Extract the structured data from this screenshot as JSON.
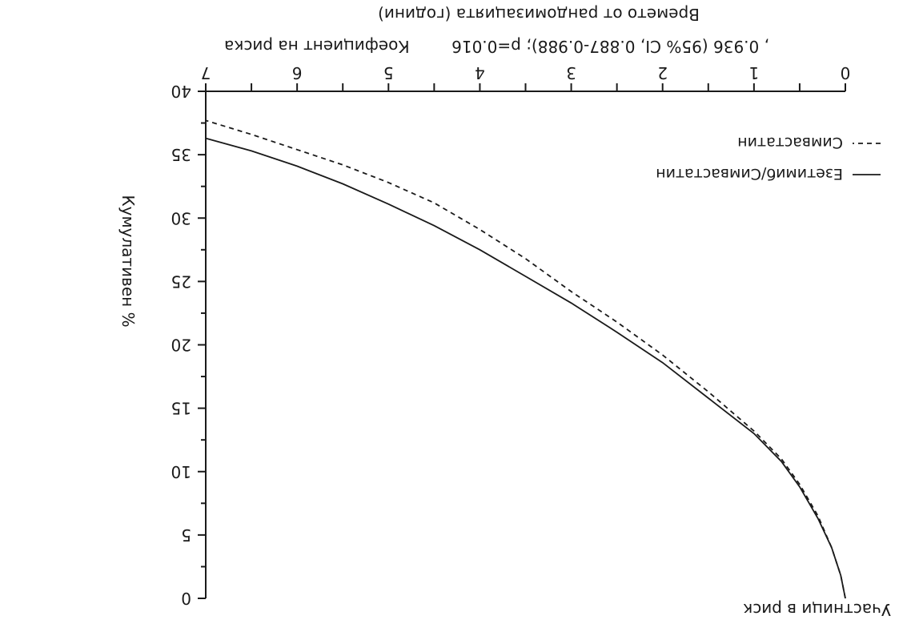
{
  "chart_data": {
    "type": "line",
    "title": "Участници в риск",
    "xlabel": "Времето от рандомизацията (години)",
    "ylabel": "Кумулативен %",
    "xlim": [
      0,
      7
    ],
    "ylim": [
      0,
      40
    ],
    "x_ticks": [
      "0",
      "1",
      "2",
      "3",
      "4",
      "5",
      "6",
      "7"
    ],
    "y_ticks": [
      "0",
      "5",
      "10",
      "15",
      "20",
      "25",
      "30",
      "35",
      "40"
    ],
    "grid": false,
    "legend_position": "top-right",
    "series": [
      {
        "name": "Симвастатин",
        "style": "dashed",
        "color": "#1a1a1a",
        "x": [
          0,
          0.05,
          0.15,
          0.3,
          0.5,
          0.7,
          1.0,
          1.5,
          2.0,
          2.5,
          3.0,
          3.5,
          4.0,
          4.5,
          5.0,
          5.5,
          6.0,
          6.5,
          7.0
        ],
        "y": [
          0,
          1.8,
          4.0,
          6.5,
          9.0,
          11.0,
          13.2,
          16.3,
          19.2,
          21.8,
          24.2,
          26.8,
          29.1,
          31.2,
          32.8,
          34.2,
          35.4,
          36.6,
          37.7
        ]
      },
      {
        "name": "Езетимиб/Симвастатин",
        "style": "solid",
        "color": "#1a1a1a",
        "x": [
          0,
          0.05,
          0.15,
          0.3,
          0.5,
          0.7,
          1.0,
          1.5,
          2.0,
          2.5,
          3.0,
          3.5,
          4.0,
          4.5,
          5.0,
          5.5,
          6.0,
          6.5,
          7.0
        ],
        "y": [
          0,
          1.8,
          4.0,
          6.3,
          8.8,
          10.8,
          13.0,
          15.8,
          18.6,
          21.0,
          23.3,
          25.4,
          27.5,
          29.4,
          31.1,
          32.7,
          34.1,
          35.3,
          36.3
        ]
      }
    ],
    "annotation": {
      "label": "Коефициент на риска",
      "value": ", 0.936 (95% CI, 0.887-0.988); p=0.016"
    }
  }
}
